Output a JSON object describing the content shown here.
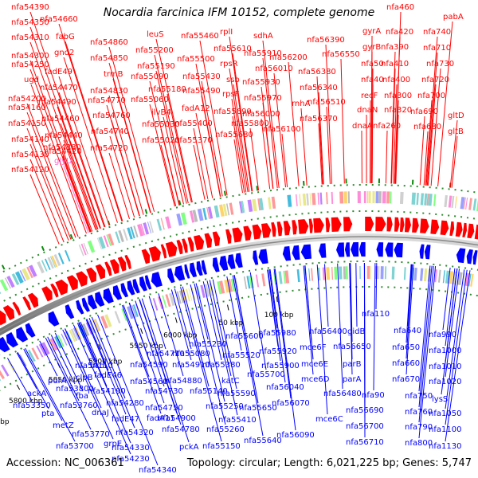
{
  "title": "Nocardia farcinica IFM 10152, complete genome",
  "footer": {
    "accession": "Accession: NC_006361",
    "stats": "Topology: circular; Length: 6,021,225 bp; Genes: 5,747"
  },
  "colors": {
    "forward": "#ff0000",
    "reverse": "#0000ff",
    "backbone": "#888888",
    "dots": "#2e8b2e",
    "rna_label": "#ff66cc"
  },
  "scale_ticks": [
    "5650 kbp",
    "5700 kbp",
    "5750 kbp",
    "5800 kbp",
    "5850 kbp",
    "5900 kbp",
    "5950 kbp",
    "6000 kbp",
    "50 kbp",
    "100 kbp"
  ],
  "forward_labels": [
    {
      "text": "nfa54390"
    },
    {
      "text": "nfa54350"
    },
    {
      "text": "nfa54310"
    },
    {
      "text": "nfa54300"
    },
    {
      "text": "nfa54250"
    },
    {
      "text": "nfa54200"
    },
    {
      "text": "nfa54160"
    },
    {
      "text": "nfa54150"
    },
    {
      "text": "nfa54140"
    },
    {
      "text": "nfa54130"
    },
    {
      "text": "nfa54120"
    },
    {
      "text": "nfa54660"
    },
    {
      "text": "fabG"
    },
    {
      "text": "gnd2"
    },
    {
      "text": "ugd"
    },
    {
      "text": "fadE49"
    },
    {
      "text": "nfa54470"
    },
    {
      "text": "nfa54490"
    },
    {
      "text": "nfa54460"
    },
    {
      "text": "nfa54440"
    },
    {
      "text": "nfa54420"
    },
    {
      "text": "nfa54380"
    },
    {
      "text": "glyU",
      "rna": true
    },
    {
      "text": "nfa54860"
    },
    {
      "text": "nfa54850"
    },
    {
      "text": "trmB"
    },
    {
      "text": "nfa54830"
    },
    {
      "text": "nfa54770"
    },
    {
      "text": "nfa54760"
    },
    {
      "text": "nfa54740"
    },
    {
      "text": "nfa54720"
    },
    {
      "text": "leuS"
    },
    {
      "text": "nfa55200"
    },
    {
      "text": "nfa55190"
    },
    {
      "text": "nfa55090"
    },
    {
      "text": "nfa55180"
    },
    {
      "text": "nfa55060"
    },
    {
      "text": "ilvB4"
    },
    {
      "text": "nfa55030"
    },
    {
      "text": "nfa55020"
    },
    {
      "text": "nfa55460"
    },
    {
      "text": "nfa55500"
    },
    {
      "text": "nfa55430"
    },
    {
      "text": "nfa55490"
    },
    {
      "text": "fadA12"
    },
    {
      "text": "nfa55400"
    },
    {
      "text": "nfa55370"
    },
    {
      "text": "rplI"
    },
    {
      "text": "nfa55610"
    },
    {
      "text": "rpsR"
    },
    {
      "text": "ssb"
    },
    {
      "text": "rpsF"
    },
    {
      "text": "nfa55690"
    },
    {
      "text": "nfa55680"
    },
    {
      "text": "nfa55910"
    },
    {
      "text": "sdhA"
    },
    {
      "text": "nfa56010"
    },
    {
      "text": "nfa55930"
    },
    {
      "text": "nfa55970"
    },
    {
      "text": "nfa56000"
    },
    {
      "text": "nfa55800"
    },
    {
      "text": "nfa56100"
    },
    {
      "text": "nfa56200"
    },
    {
      "text": "nfa56390"
    },
    {
      "text": "nfa56380"
    },
    {
      "text": "nfa56550"
    },
    {
      "text": "nfa56340"
    },
    {
      "text": "rnhA"
    },
    {
      "text": "nfa56510"
    },
    {
      "text": "nfa56370"
    },
    {
      "text": "nfa460"
    },
    {
      "text": "gyrA"
    },
    {
      "text": "gyrB"
    },
    {
      "text": "nfa50"
    },
    {
      "text": "nfa40"
    },
    {
      "text": "recF"
    },
    {
      "text": "dnaN"
    },
    {
      "text": "dnaA"
    },
    {
      "text": "nfa420"
    },
    {
      "text": "nfa390"
    },
    {
      "text": "nfa410"
    },
    {
      "text": "nfa400"
    },
    {
      "text": "nfa300"
    },
    {
      "text": "nfa320"
    },
    {
      "text": "nfa260"
    },
    {
      "text": "pabA"
    },
    {
      "text": "nfa740"
    },
    {
      "text": "nfa710"
    },
    {
      "text": "nfa730"
    },
    {
      "text": "nfa720"
    },
    {
      "text": "nfa700"
    },
    {
      "text": "nfa690"
    },
    {
      "text": "nfa680"
    },
    {
      "text": "gltD"
    },
    {
      "text": "gltB"
    }
  ],
  "reverse_labels": [
    {
      "text": "ackA"
    },
    {
      "text": "nfa53350"
    },
    {
      "text": "purA"
    },
    {
      "text": "nfa53800"
    },
    {
      "text": "pta"
    },
    {
      "text": "nfa53760"
    },
    {
      "text": "metZ"
    },
    {
      "text": "nfa53770"
    },
    {
      "text": "nfa53700"
    },
    {
      "text": "nfa54110"
    },
    {
      "text": "clpB"
    },
    {
      "text": "fba"
    },
    {
      "text": "dnaJ"
    },
    {
      "text": "grpE"
    },
    {
      "text": "dcd"
    },
    {
      "text": "fadE46"
    },
    {
      "text": "nfa54190"
    },
    {
      "text": "nfa54280"
    },
    {
      "text": "fadE47"
    },
    {
      "text": "nfa54320"
    },
    {
      "text": "nfa54330"
    },
    {
      "text": "nfa54230"
    },
    {
      "text": "nfa54340"
    },
    {
      "text": "nfa54590"
    },
    {
      "text": "nfa54560"
    },
    {
      "text": "nfa54730"
    },
    {
      "text": "nfa54750"
    },
    {
      "text": "fadA11"
    },
    {
      "text": "nfa54780"
    },
    {
      "text": "pckA"
    },
    {
      "text": "nfa54710"
    },
    {
      "text": "nfa54910"
    },
    {
      "text": "nfa54880"
    },
    {
      "text": "nfa54900"
    },
    {
      "text": "nfa55080"
    },
    {
      "text": "nfa55140"
    },
    {
      "text": "nfa55150"
    },
    {
      "text": "nfa55230"
    },
    {
      "text": "nfa55380"
    },
    {
      "text": "katC"
    },
    {
      "text": "nfa55250"
    },
    {
      "text": "nfa55260"
    },
    {
      "text": "nfa55600"
    },
    {
      "text": "nfa55520"
    },
    {
      "text": "nfa55700"
    },
    {
      "text": "nfa55590"
    },
    {
      "text": "nfa55410"
    },
    {
      "text": "nfa55640"
    },
    {
      "text": "nfa55650"
    },
    {
      "text": "nfa55980"
    },
    {
      "text": "nfa55920"
    },
    {
      "text": "nfa55900"
    },
    {
      "text": "nfa56040"
    },
    {
      "text": "nfa56070"
    },
    {
      "text": "nfa56090"
    },
    {
      "text": "nfa56400"
    },
    {
      "text": "mce6F"
    },
    {
      "text": "mce6E"
    },
    {
      "text": "mce6D"
    },
    {
      "text": "mce6C"
    },
    {
      "text": "nfa56650"
    },
    {
      "text": "nfa56480"
    },
    {
      "text": "gidB"
    },
    {
      "text": "parB"
    },
    {
      "text": "parA"
    },
    {
      "text": "nfa56690"
    },
    {
      "text": "nfa56700"
    },
    {
      "text": "nfa56710"
    },
    {
      "text": "nfa110"
    },
    {
      "text": "nfa90"
    },
    {
      "text": "nfa640"
    },
    {
      "text": "nfa650"
    },
    {
      "text": "nfa660"
    },
    {
      "text": "nfa670"
    },
    {
      "text": "nfa750"
    },
    {
      "text": "nfa760"
    },
    {
      "text": "nfa790"
    },
    {
      "text": "nfa800"
    },
    {
      "text": "nfa990"
    },
    {
      "text": "nfa1000"
    },
    {
      "text": "nfa1010"
    },
    {
      "text": "nfa1020"
    },
    {
      "text": "lysS"
    },
    {
      "text": "nfa1050"
    },
    {
      "text": "nfa1100"
    },
    {
      "text": "nfa1130"
    }
  ]
}
